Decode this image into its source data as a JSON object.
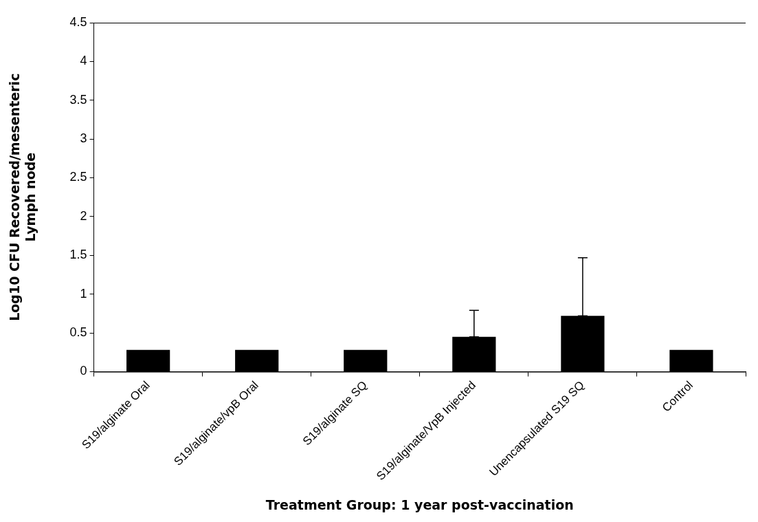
{
  "chart_data": {
    "type": "bar",
    "xlabel": "Treatment Group: 1 year post-vaccination",
    "ylabel": "Log10 CFU Recovered/mesenteric Lymph node",
    "categories": [
      "S19/alginate Oral",
      "S19/alginate/vpB Oral",
      "S19/alginate SQ",
      "S19/alginate/VpB Injected",
      "Unencapsulated S19 SQ",
      "Control"
    ],
    "values": [
      0.28,
      0.28,
      0.28,
      0.45,
      0.72,
      0.28
    ],
    "errors": [
      null,
      null,
      null,
      [
        0.45,
        0.79
      ],
      [
        0.72,
        1.47
      ],
      null
    ],
    "color": "#000000",
    "ylim": [
      0,
      4.5
    ],
    "yticks": [
      0,
      0.5,
      1,
      1.5,
      2,
      2.5,
      3,
      3.5,
      4,
      4.5
    ],
    "grid": false,
    "legend": false
  }
}
